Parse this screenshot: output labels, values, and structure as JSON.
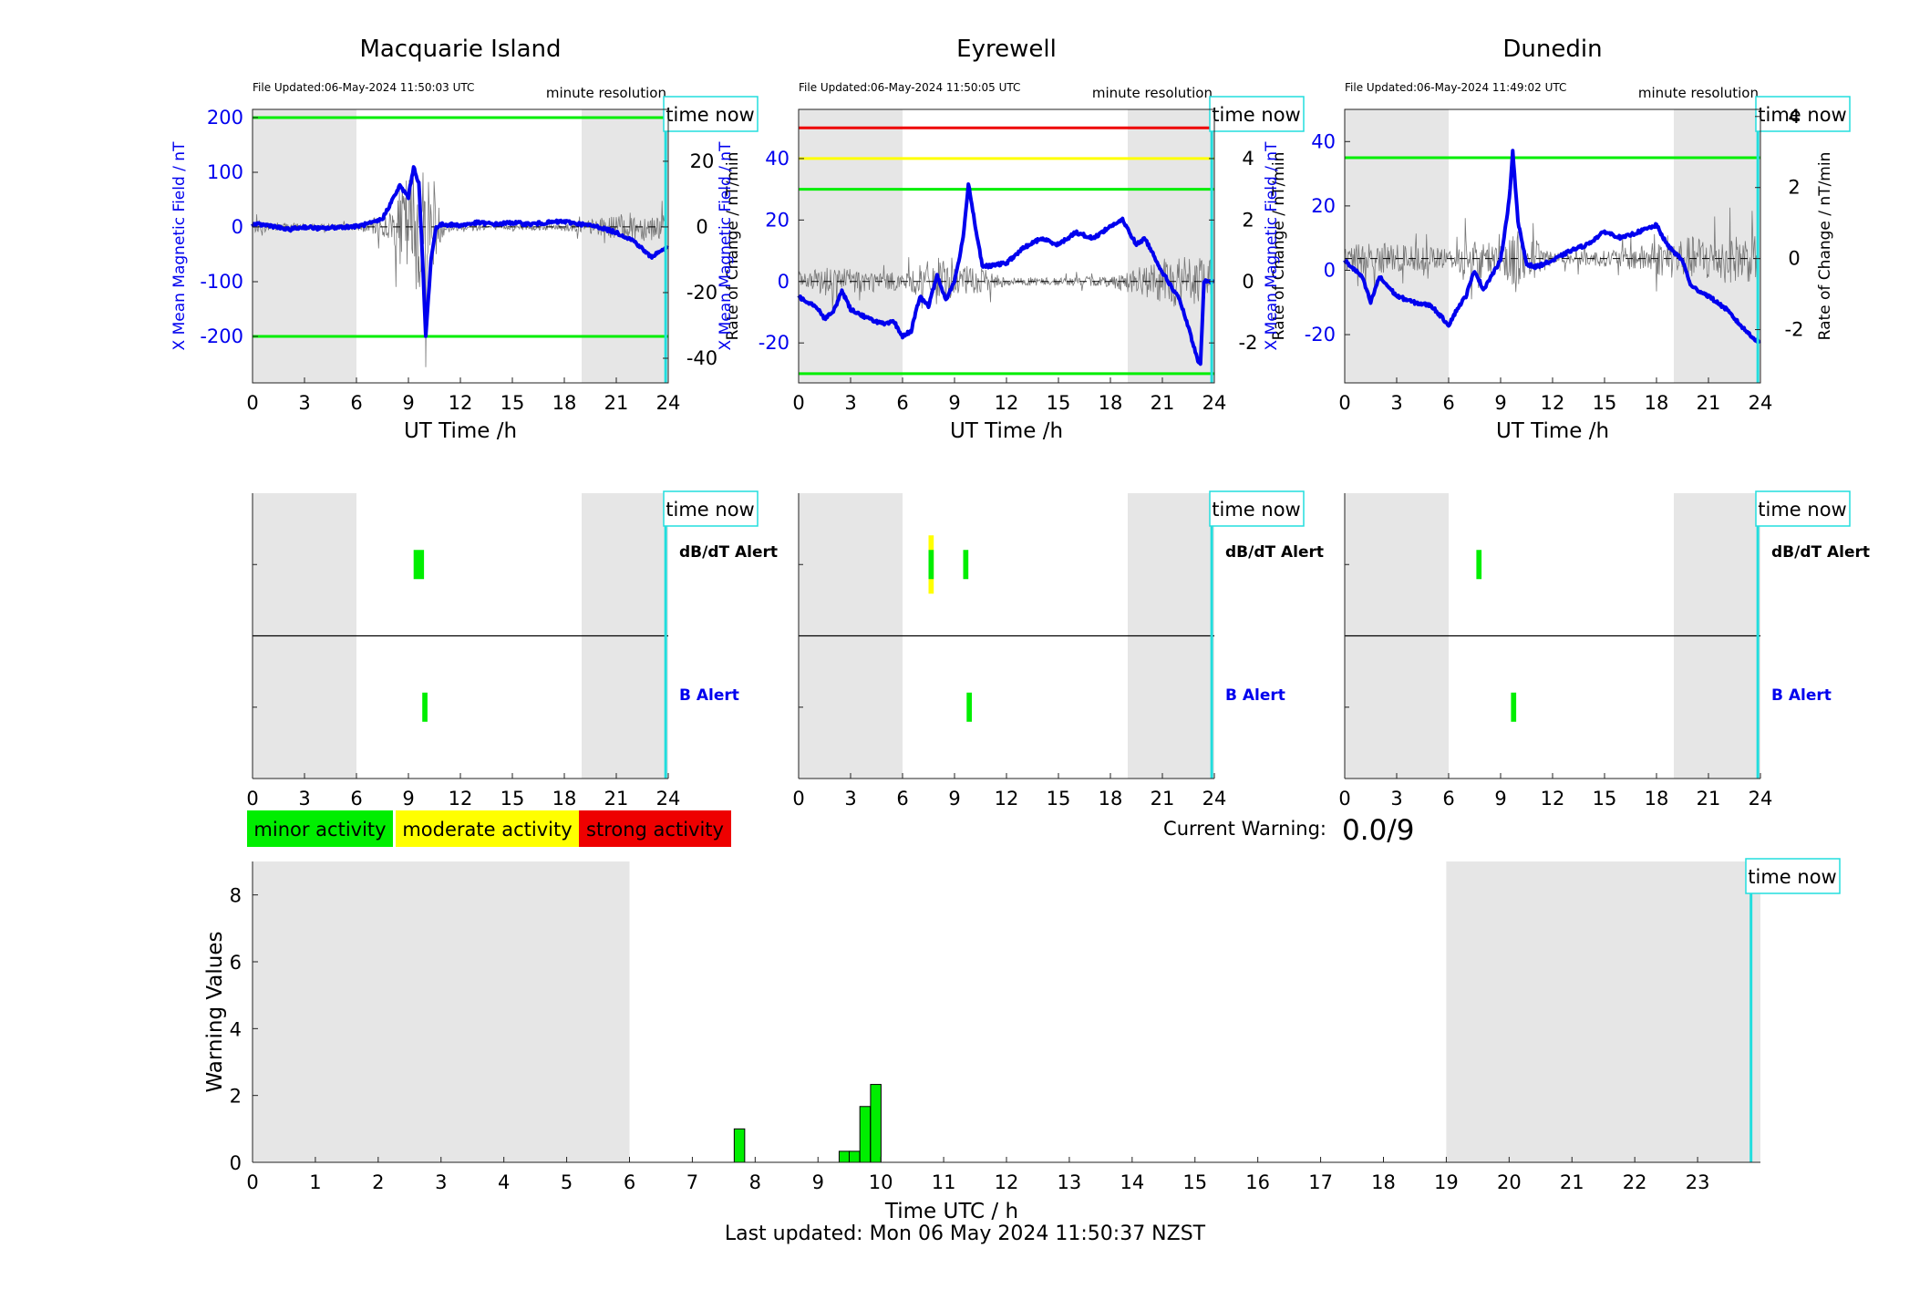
{
  "colors": {
    "shade": "#e6e6e6",
    "field_line": "#0000ee",
    "rate_line": "#777777",
    "green": "#00ee00",
    "yellow": "#ffff00",
    "red": "#ee0000",
    "now_line": "#22dddd",
    "blue_axis": "#0000ee"
  },
  "chart_data": [
    {
      "type": "line",
      "title": "Macquarie Island",
      "file_updated": "File Updated:06-May-2024 11:50:03 UTC",
      "resolution": "minute resolution",
      "time_now_label": "time now",
      "now_hour": 23.85,
      "xlabel": "UT Time /h",
      "ylabel_left": "X Mean Magnetic Field / nT",
      "ylabel_right": "Rate of Change / nT/min",
      "xlim": [
        0,
        24
      ],
      "xticks": [
        0,
        3,
        6,
        9,
        12,
        15,
        18,
        21,
        24
      ],
      "ylim": [
        -285,
        215
      ],
      "yticks": [
        -200,
        -100,
        0,
        100,
        200
      ],
      "ylim_right": [
        -47.5,
        35.8
      ],
      "yticks_right": [
        -40,
        -20,
        0,
        20
      ],
      "thresholds": [
        {
          "value": 200,
          "color": "green"
        },
        {
          "value": -200,
          "color": "green"
        }
      ],
      "night_shading": [
        [
          0,
          6
        ],
        [
          19,
          24
        ]
      ],
      "field_series": [
        [
          0,
          5
        ],
        [
          1,
          3
        ],
        [
          2,
          -5
        ],
        [
          3,
          0
        ],
        [
          4,
          -3
        ],
        [
          5,
          0
        ],
        [
          6,
          1
        ],
        [
          7,
          8
        ],
        [
          7.5,
          15
        ],
        [
          8,
          45
        ],
        [
          8.5,
          75
        ],
        [
          9,
          55
        ],
        [
          9.3,
          110
        ],
        [
          9.6,
          80
        ],
        [
          9.8,
          -50
        ],
        [
          10,
          -200
        ],
        [
          10.3,
          -60
        ],
        [
          10.6,
          0
        ],
        [
          11,
          5
        ],
        [
          12,
          3
        ],
        [
          13,
          8
        ],
        [
          14,
          5
        ],
        [
          15,
          8
        ],
        [
          16,
          5
        ],
        [
          17,
          8
        ],
        [
          18,
          10
        ],
        [
          19,
          5
        ],
        [
          20,
          0
        ],
        [
          21,
          -10
        ],
        [
          22,
          -25
        ],
        [
          23,
          -55
        ],
        [
          23.5,
          -45
        ],
        [
          24,
          -35
        ]
      ],
      "rate_envelope": [
        [
          0,
          4
        ],
        [
          2,
          3
        ],
        [
          4,
          2
        ],
        [
          6,
          2
        ],
        [
          8,
          10
        ],
        [
          9,
          40
        ],
        [
          10,
          45
        ],
        [
          11,
          6
        ],
        [
          12,
          2
        ],
        [
          15,
          2
        ],
        [
          18,
          3
        ],
        [
          20,
          6
        ],
        [
          22,
          10
        ],
        [
          24,
          8
        ]
      ]
    },
    {
      "type": "line",
      "title": "Eyrewell",
      "file_updated": "File Updated:06-May-2024 11:50:05 UTC",
      "resolution": "minute resolution",
      "time_now_label": "time now",
      "now_hour": 23.85,
      "xlabel": "UT Time /h",
      "ylabel_left": "X Mean Magnetic Field / nT",
      "ylabel_right": "Rate of Change / nT/min",
      "xlim": [
        0,
        24
      ],
      "xticks": [
        0,
        3,
        6,
        9,
        12,
        15,
        18,
        21,
        24
      ],
      "ylim": [
        -33,
        56
      ],
      "yticks": [
        -20,
        0,
        20,
        40
      ],
      "ylim_right": [
        -3.3,
        5.6
      ],
      "yticks_right": [
        -2,
        0,
        2,
        4
      ],
      "thresholds": [
        {
          "value": 50,
          "color": "red"
        },
        {
          "value": 40,
          "color": "yellow"
        },
        {
          "value": 30,
          "color": "green"
        },
        {
          "value": -30,
          "color": "green"
        }
      ],
      "night_shading": [
        [
          0,
          6
        ],
        [
          19,
          24
        ]
      ],
      "field_series": [
        [
          0,
          -5
        ],
        [
          1,
          -8
        ],
        [
          1.5,
          -12
        ],
        [
          2,
          -10
        ],
        [
          2.5,
          -3
        ],
        [
          3,
          -9
        ],
        [
          4,
          -12
        ],
        [
          5,
          -14
        ],
        [
          5.5,
          -13
        ],
        [
          6,
          -18
        ],
        [
          6.5,
          -16
        ],
        [
          7,
          -5
        ],
        [
          7.5,
          -8
        ],
        [
          8,
          2
        ],
        [
          8.5,
          -6
        ],
        [
          9,
          0
        ],
        [
          9.5,
          14
        ],
        [
          9.8,
          32
        ],
        [
          10.2,
          18
        ],
        [
          10.6,
          5
        ],
        [
          11,
          5
        ],
        [
          12,
          6
        ],
        [
          13,
          11
        ],
        [
          14,
          14
        ],
        [
          15,
          12
        ],
        [
          16,
          16
        ],
        [
          17,
          14
        ],
        [
          18,
          18
        ],
        [
          18.7,
          20
        ],
        [
          19.5,
          12
        ],
        [
          20,
          14
        ],
        [
          21,
          3
        ],
        [
          22,
          -6
        ],
        [
          22.5,
          -15
        ],
        [
          23,
          -25
        ],
        [
          23.2,
          -27
        ],
        [
          23.4,
          0
        ],
        [
          24,
          0
        ]
      ],
      "rate_envelope": [
        [
          0,
          0.5
        ],
        [
          2,
          1.2
        ],
        [
          4,
          0.8
        ],
        [
          6,
          0.6
        ],
        [
          7,
          1.2
        ],
        [
          8,
          1.8
        ],
        [
          9,
          1
        ],
        [
          10,
          1.2
        ],
        [
          12,
          0.3
        ],
        [
          15,
          0.3
        ],
        [
          18,
          0.4
        ],
        [
          20,
          1.2
        ],
        [
          22,
          2
        ],
        [
          24,
          1.5
        ]
      ]
    },
    {
      "type": "line",
      "title": "Dunedin",
      "file_updated": "File Updated:06-May-2024 11:49:02 UTC",
      "resolution": "minute resolution",
      "time_now_label": "time now",
      "now_hour": 23.85,
      "xlabel": "UT Time /h",
      "ylabel_left": "X Mean Magnetic Field / nT",
      "ylabel_right": "Rate of Change / nT/min",
      "xlim": [
        0,
        24
      ],
      "xticks": [
        0,
        3,
        6,
        9,
        12,
        15,
        18,
        21,
        24
      ],
      "ylim": [
        -35,
        50
      ],
      "yticks": [
        -20,
        0,
        20,
        40
      ],
      "ylim_right": [
        -3.5,
        4.2
      ],
      "yticks_right": [
        -2,
        0,
        2,
        4
      ],
      "thresholds": [
        {
          "value": 35,
          "color": "green"
        }
      ],
      "night_shading": [
        [
          0,
          6
        ],
        [
          19,
          24
        ]
      ],
      "field_series": [
        [
          0,
          3
        ],
        [
          1,
          -2
        ],
        [
          1.5,
          -10
        ],
        [
          2,
          -2
        ],
        [
          3,
          -8
        ],
        [
          4,
          -10
        ],
        [
          5,
          -11
        ],
        [
          6,
          -17
        ],
        [
          6.5,
          -12
        ],
        [
          7,
          -8
        ],
        [
          7.5,
          0
        ],
        [
          8,
          -6
        ],
        [
          9,
          3
        ],
        [
          9.5,
          22
        ],
        [
          9.7,
          37
        ],
        [
          10,
          15
        ],
        [
          10.5,
          2
        ],
        [
          11,
          1
        ],
        [
          12,
          3
        ],
        [
          13,
          6
        ],
        [
          14,
          8
        ],
        [
          15,
          12
        ],
        [
          16,
          10
        ],
        [
          17,
          12
        ],
        [
          18,
          14
        ],
        [
          18.6,
          8
        ],
        [
          19.5,
          3
        ],
        [
          20,
          -5
        ],
        [
          21,
          -8
        ],
        [
          22,
          -12
        ],
        [
          23,
          -18
        ],
        [
          24,
          -23
        ]
      ],
      "rate_envelope": [
        [
          0,
          1
        ],
        [
          2,
          1
        ],
        [
          4,
          0.8
        ],
        [
          6,
          0.6
        ],
        [
          7,
          1.5
        ],
        [
          8,
          1
        ],
        [
          9,
          1
        ],
        [
          10,
          2
        ],
        [
          12,
          0.4
        ],
        [
          15,
          0.5
        ],
        [
          17,
          0.8
        ],
        [
          19,
          1.3
        ],
        [
          21,
          1.5
        ],
        [
          24,
          1.5
        ]
      ]
    },
    {
      "type": "bar",
      "panel": "alerts",
      "station": "Macquarie Island",
      "row_labels": [
        "dB/dT Alert",
        "B Alert"
      ],
      "time_now_label": "time now",
      "now_hour": 23.85,
      "xlim": [
        0,
        24
      ],
      "xticks": [
        0,
        3,
        6,
        9,
        12,
        15,
        18,
        21,
        24
      ],
      "night_shading": [
        [
          0,
          6
        ],
        [
          19,
          24
        ]
      ],
      "events": [
        {
          "row": 0,
          "start": 9.3,
          "end": 9.9,
          "level": "minor"
        },
        {
          "row": 1,
          "start": 9.8,
          "end": 10.1,
          "level": "minor"
        }
      ]
    },
    {
      "type": "bar",
      "panel": "alerts",
      "station": "Eyrewell",
      "row_labels": [
        "dB/dT Alert",
        "B Alert"
      ],
      "time_now_label": "time now",
      "now_hour": 23.85,
      "xlim": [
        0,
        24
      ],
      "xticks": [
        0,
        3,
        6,
        9,
        12,
        15,
        18,
        21,
        24
      ],
      "night_shading": [
        [
          0,
          6
        ],
        [
          19,
          24
        ]
      ],
      "events": [
        {
          "row": 0,
          "start": 7.5,
          "end": 7.8,
          "level": "moderate"
        },
        {
          "row": 0,
          "start": 7.5,
          "end": 7.8,
          "level": "minor"
        },
        {
          "row": 0,
          "start": 9.5,
          "end": 9.8,
          "level": "minor"
        },
        {
          "row": 1,
          "start": 9.7,
          "end": 10.0,
          "level": "minor"
        }
      ]
    },
    {
      "type": "bar",
      "panel": "alerts",
      "station": "Dunedin",
      "row_labels": [
        "dB/dT Alert",
        "B Alert"
      ],
      "time_now_label": "time now",
      "now_hour": 23.85,
      "xlim": [
        0,
        24
      ],
      "xticks": [
        0,
        3,
        6,
        9,
        12,
        15,
        18,
        21,
        24
      ],
      "night_shading": [
        [
          0,
          6
        ],
        [
          19,
          24
        ]
      ],
      "events": [
        {
          "row": 0,
          "start": 7.6,
          "end": 7.9,
          "level": "minor"
        },
        {
          "row": 1,
          "start": 9.6,
          "end": 9.9,
          "level": "minor"
        }
      ]
    },
    {
      "type": "bar",
      "panel": "warning",
      "xlabel": "Time UTC / h",
      "ylabel": "Warning Values",
      "xlim": [
        0,
        24
      ],
      "xticks": [
        0,
        1,
        2,
        3,
        4,
        5,
        6,
        7,
        8,
        9,
        10,
        11,
        12,
        13,
        14,
        15,
        16,
        17,
        18,
        19,
        20,
        21,
        22,
        23
      ],
      "ylim": [
        0,
        9
      ],
      "yticks": [
        0,
        2,
        4,
        6,
        8
      ],
      "night_shading": [
        [
          0,
          6
        ],
        [
          19,
          24
        ]
      ],
      "time_now_label": "time now",
      "now_hour": 23.85,
      "bars": [
        {
          "x": 7.75,
          "value": 1.0
        },
        {
          "x": 9.42,
          "value": 0.33
        },
        {
          "x": 9.58,
          "value": 0.33
        },
        {
          "x": 9.75,
          "value": 1.67
        },
        {
          "x": 9.92,
          "value": 2.33
        }
      ],
      "bar_width": 0.167
    }
  ],
  "legend": {
    "minor": "minor activity",
    "moderate": "moderate activity",
    "strong": "strong activity"
  },
  "current_warning": {
    "label": "Current Warning:",
    "value": "0.0/9"
  },
  "footer": "Last updated: Mon 06 May 2024 11:50:37 NZST"
}
